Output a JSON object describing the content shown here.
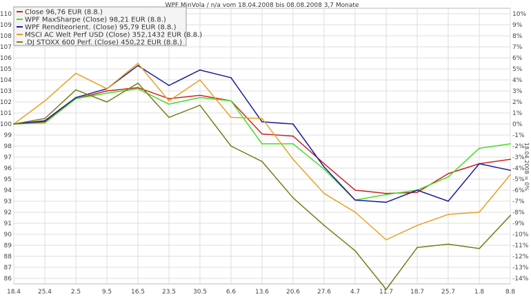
{
  "chart_data": {
    "type": "line",
    "title": "WPF MinVola / n/a vom 18.04.2008 bis 08.08.2008 3,7 Monate",
    "right_axis_label": "18.04.2008 = 0%",
    "categories": [
      "18.4",
      "25.4",
      "2.5",
      "9.5",
      "16.5",
      "23.5",
      "30.5",
      "6.6",
      "13.6",
      "20.6",
      "27.6",
      "4.7",
      "11.7",
      "18.7",
      "25.7",
      "1.8",
      "8.8"
    ],
    "left_ticks": [
      "86",
      "87",
      "88",
      "89",
      "90",
      "91",
      "92",
      "93",
      "94",
      "95",
      "96",
      "97",
      "98",
      "99",
      "100",
      "101",
      "102",
      "103",
      "104",
      "105",
      "106",
      "107",
      "108",
      "109",
      "110"
    ],
    "right_ticks": [
      "-14%",
      "-13%",
      "-12%",
      "-11%",
      "-10%",
      "-9%",
      "-8%",
      "-7%",
      "-6%",
      "-5%",
      "-4%",
      "-3%",
      "-2%",
      "-1%",
      "0%",
      "1%",
      "2%",
      "3%",
      "4%",
      "5%",
      "6%",
      "7%",
      "8%",
      "9%",
      "10%"
    ],
    "ylim": [
      85.5,
      110.5
    ],
    "grid": true,
    "legend_position": "top-left",
    "series": [
      {
        "name": "Close 96,76 EUR (8.8.)",
        "color": "#cc2222",
        "values": [
          100.0,
          100.2,
          102.3,
          103.0,
          103.3,
          102.3,
          102.6,
          102.1,
          99.1,
          98.9,
          96.4,
          94.0,
          93.7,
          93.8,
          95.5,
          96.4,
          96.8
        ]
      },
      {
        "name": "WPF MaxSharpe (Close) 98,21 EUR (8.8.)",
        "color": "#44dd22",
        "values": [
          100.0,
          100.1,
          102.3,
          102.8,
          103.2,
          101.8,
          102.4,
          102.1,
          98.2,
          98.2,
          95.9,
          93.1,
          93.6,
          94.0,
          95.2,
          97.8,
          98.2
        ]
      },
      {
        "name": "WPF Renditeorient. (Close) 95,79 EUR (8.8.)",
        "color": "#1a1a99",
        "values": [
          100.0,
          100.3,
          102.4,
          103.2,
          105.3,
          103.5,
          104.9,
          104.2,
          100.2,
          100.0,
          96.1,
          93.1,
          92.9,
          94.0,
          93.0,
          96.4,
          95.8
        ]
      },
      {
        "name": "MSCI AC Welt Perf USD (Close) 352,1432 EUR (8.8.)",
        "color": "#e8a020",
        "values": [
          100.0,
          102.1,
          104.6,
          103.2,
          105.5,
          102.1,
          104.0,
          100.6,
          100.5,
          96.8,
          93.7,
          92.0,
          89.5,
          90.8,
          91.8,
          92.0,
          95.4
        ]
      },
      {
        "name": ".DJ STOXX 600 Perf. (Close) 450,22 EUR (8.8.)",
        "color": "#7a7a18",
        "values": [
          100.0,
          100.5,
          103.1,
          102.0,
          103.7,
          100.6,
          101.7,
          98.0,
          96.6,
          93.3,
          90.8,
          88.5,
          85.0,
          88.8,
          89.1,
          88.7,
          91.7
        ]
      }
    ]
  }
}
